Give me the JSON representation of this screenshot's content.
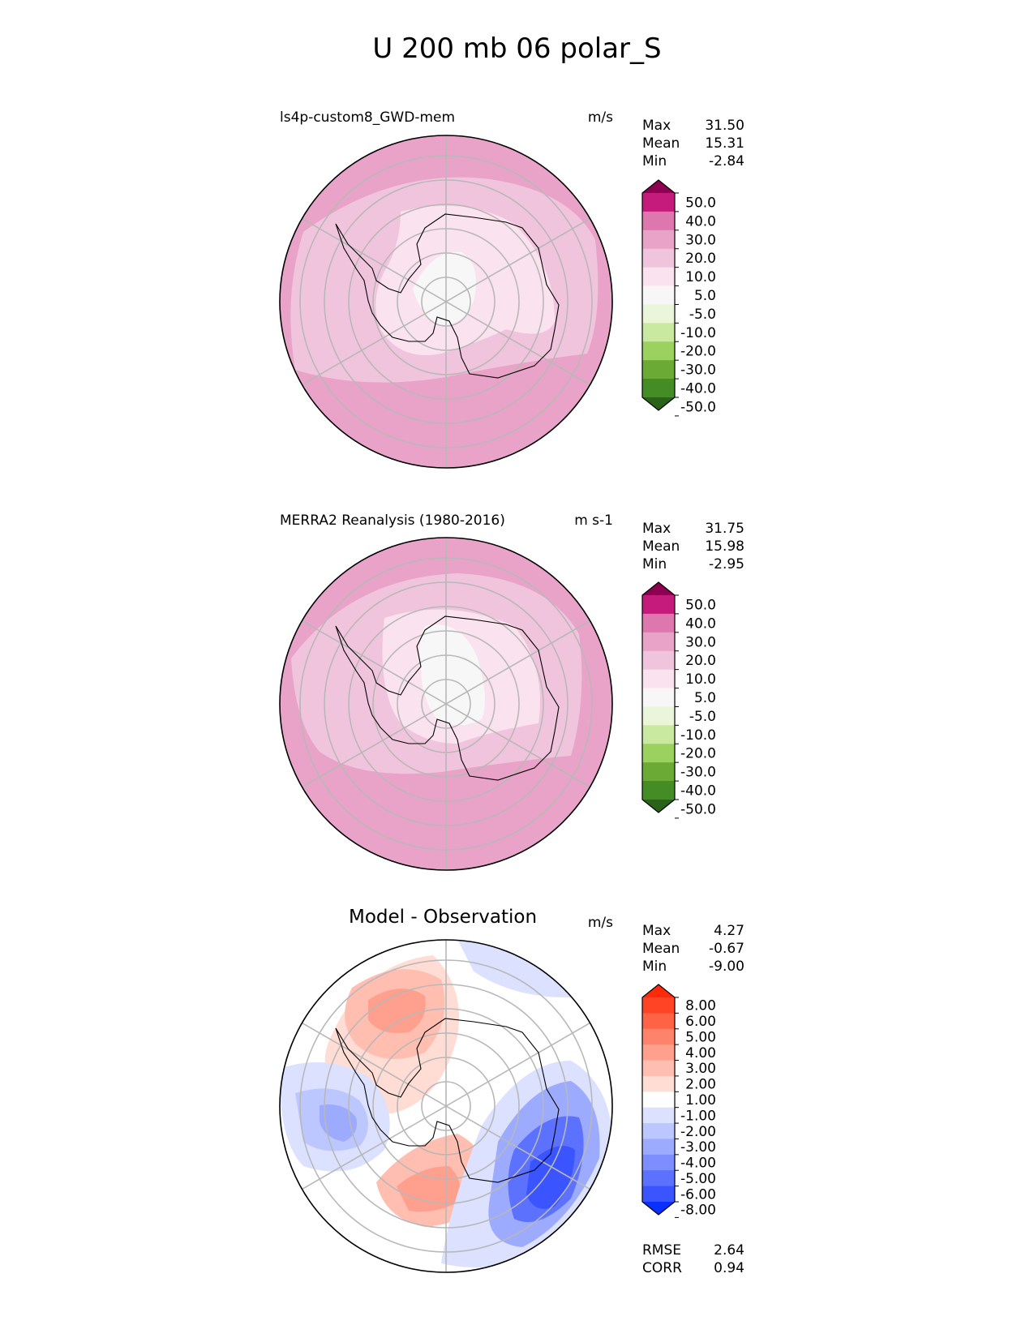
{
  "title": "U 200 mb 06 polar_S",
  "panels": [
    {
      "label": "ls4p-custom8_GWD-mem",
      "units": "m/s",
      "stats": [
        {
          "name": "Max",
          "value": "31.50"
        },
        {
          "name": "Mean",
          "value": "15.31"
        },
        {
          "name": "Min",
          "value": "-2.84"
        }
      ]
    },
    {
      "label": "MERRA2 Reanalysis (1980-2016)",
      "units": "m s-1",
      "stats": [
        {
          "name": "Max",
          "value": "31.75"
        },
        {
          "name": "Mean",
          "value": "15.98"
        },
        {
          "name": "Min",
          "value": "-2.95"
        }
      ]
    },
    {
      "label": "Model - Observation",
      "units": "m/s",
      "stats": [
        {
          "name": "Max",
          "value": "4.27"
        },
        {
          "name": "Mean",
          "value": "-0.67"
        },
        {
          "name": "Min",
          "value": "-9.00"
        }
      ],
      "extra_stats": [
        {
          "name": "RMSE",
          "value": "2.64"
        },
        {
          "name": "CORR",
          "value": "0.94"
        }
      ]
    }
  ],
  "colorbars": {
    "field": {
      "labels": [
        "50.0",
        "40.0",
        "30.0",
        "20.0",
        "10.0",
        "5.0",
        "-5.0",
        "-10.0",
        "-20.0",
        "-30.0",
        "-40.0",
        "-50.0"
      ],
      "colors": [
        "#8e0152",
        "#c51b7d",
        "#de77ae",
        "#e9a3c9",
        "#f1c4de",
        "#fbe2ef",
        "#f7f7f7",
        "#eaf5d9",
        "#c9e8a0",
        "#9bd15f",
        "#6baa35",
        "#448c24",
        "#286317"
      ]
    },
    "diff": {
      "labels": [
        "8.00",
        "6.00",
        "5.00",
        "4.00",
        "3.00",
        "2.00",
        "1.00",
        "-1.00",
        "-2.00",
        "-3.00",
        "-4.00",
        "-5.00",
        "-6.00",
        "-8.00"
      ],
      "colors": [
        "#ff2a0a",
        "#ff4426",
        "#ff6346",
        "#ff836a",
        "#ffa08e",
        "#ffbeb0",
        "#ffdcd4",
        "#ffffff",
        "#dce1ff",
        "#bcc6ff",
        "#9dabff",
        "#7d8fff",
        "#5c72ff",
        "#3a55ff",
        "#0a30ff"
      ]
    }
  },
  "chart_data": [
    {
      "type": "heatmap",
      "title": "ls4p-custom8_GWD-mem",
      "projection": "south-polar-stereographic",
      "units": "m/s",
      "max": 31.5,
      "mean": 15.31,
      "min": -2.84,
      "levels": [
        -50,
        -40,
        -30,
        -20,
        -10,
        -5,
        5,
        10,
        20,
        30,
        40,
        50
      ]
    },
    {
      "type": "heatmap",
      "title": "MERRA2 Reanalysis (1980-2016)",
      "projection": "south-polar-stereographic",
      "units": "m s-1",
      "max": 31.75,
      "mean": 15.98,
      "min": -2.95,
      "levels": [
        -50,
        -40,
        -30,
        -20,
        -10,
        -5,
        5,
        10,
        20,
        30,
        40,
        50
      ]
    },
    {
      "type": "heatmap",
      "title": "Model - Observation",
      "projection": "south-polar-stereographic",
      "units": "m/s",
      "max": 4.27,
      "mean": -0.67,
      "min": -9.0,
      "rmse": 2.64,
      "corr": 0.94,
      "levels": [
        -8,
        -6,
        -5,
        -4,
        -3,
        -2,
        -1,
        1,
        2,
        3,
        4,
        5,
        6,
        8
      ]
    }
  ]
}
